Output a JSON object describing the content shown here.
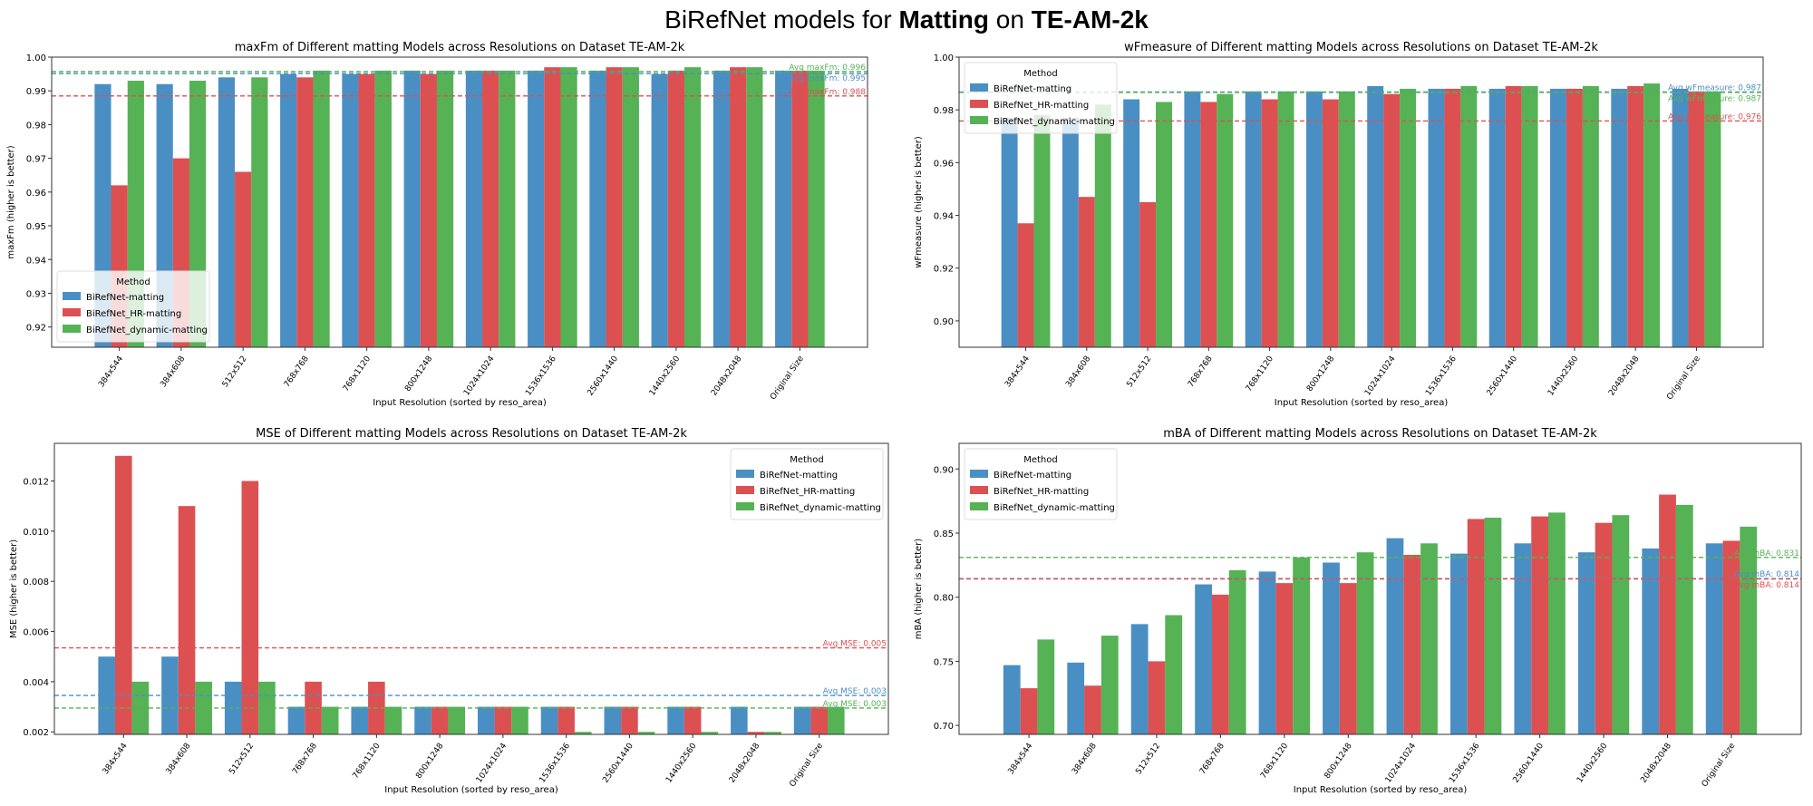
{
  "header": {
    "title_prefix": "BiRefNet models for ",
    "title_bold1": "Matting",
    "title_mid": " on ",
    "title_bold2": "TE-AM-2k"
  },
  "colors": {
    "BiRefNet-matting": "#4a8fc4",
    "BiRefNet_HR-matting": "#dd5052",
    "BiRefNet_dynamic-matting": "#55b255"
  },
  "chart_data": [
    {
      "type": "bar",
      "title": "maxFm of Different matting Models across Resolutions on Dataset TE-AM-2k",
      "xlabel": "Input Resolution (sorted by reso_area)",
      "ylabel": "maxFm (higher is better)",
      "ylim": [
        0.914,
        1.0
      ],
      "yticks": [
        "0.92",
        "0.93",
        "0.94",
        "0.95",
        "0.96",
        "0.97",
        "0.98",
        "0.99",
        "1.00"
      ],
      "legend_title": "Method",
      "legend_position": "lower-left",
      "categories": [
        "384x544",
        "384x608",
        "512x512",
        "768x768",
        "768x1120",
        "800x1248",
        "1024x1024",
        "1536x1536",
        "2560x1440",
        "1440x2560",
        "2048x2048",
        "Original Size"
      ],
      "series": [
        {
          "name": "BiRefNet-matting",
          "values": [
            0.992,
            0.992,
            0.994,
            0.995,
            0.995,
            0.996,
            0.996,
            0.996,
            0.996,
            0.995,
            0.996,
            0.996
          ]
        },
        {
          "name": "BiRefNet_HR-matting",
          "values": [
            0.962,
            0.97,
            0.966,
            0.994,
            0.995,
            0.995,
            0.996,
            0.997,
            0.997,
            0.996,
            0.997,
            0.996
          ]
        },
        {
          "name": "BiRefNet_dynamic-matting",
          "values": [
            0.993,
            0.993,
            0.994,
            0.996,
            0.996,
            0.996,
            0.996,
            0.997,
            0.997,
            0.997,
            0.997,
            0.996
          ]
        }
      ],
      "avg_lines": [
        {
          "series": "BiRefNet-matting",
          "value": 0.9951,
          "label": "Avg maxFm: 0.995"
        },
        {
          "series": "BiRefNet_HR-matting",
          "value": 0.9885,
          "label": "Avg maxFm: 0.988"
        },
        {
          "series": "BiRefNet_dynamic-matting",
          "value": 0.9957,
          "label": "Avg maxFm: 0.996"
        }
      ]
    },
    {
      "type": "bar",
      "title": "wFmeasure of Different matting Models across Resolutions on Dataset TE-AM-2k",
      "xlabel": "Input Resolution (sorted by reso_area)",
      "ylabel": "wFmeasure (higher is better)",
      "ylim": [
        0.89,
        1.0
      ],
      "yticks": [
        "0.90",
        "0.92",
        "0.94",
        "0.96",
        "0.98",
        "1.00"
      ],
      "legend_title": "Method",
      "legend_position": "upper-left",
      "categories": [
        "384x544",
        "384x608",
        "512x512",
        "768x768",
        "768x1120",
        "800x1248",
        "1024x1024",
        "1536x1536",
        "2560x1440",
        "1440x2560",
        "2048x2048",
        "Original Size"
      ],
      "series": [
        {
          "name": "BiRefNet-matting",
          "values": [
            0.977,
            0.977,
            0.984,
            0.987,
            0.987,
            0.987,
            0.989,
            0.988,
            0.988,
            0.988,
            0.988,
            0.988
          ]
        },
        {
          "name": "BiRefNet_HR-matting",
          "values": [
            0.937,
            0.947,
            0.945,
            0.983,
            0.984,
            0.984,
            0.986,
            0.988,
            0.989,
            0.988,
            0.989,
            0.987
          ]
        },
        {
          "name": "BiRefNet_dynamic-matting",
          "values": [
            0.978,
            0.982,
            0.983,
            0.986,
            0.987,
            0.987,
            0.988,
            0.989,
            0.989,
            0.989,
            0.99,
            0.987
          ]
        }
      ],
      "avg_lines": [
        {
          "series": "BiRefNet-matting",
          "value": 0.9868,
          "label": "Avg wFmeasure: 0.987"
        },
        {
          "series": "BiRefNet_HR-matting",
          "value": 0.9758,
          "label": "Avg wFmeasure: 0.976"
        },
        {
          "series": "BiRefNet_dynamic-matting",
          "value": 0.9866,
          "label": "Avg wFmeasure: 0.987"
        }
      ]
    },
    {
      "type": "bar",
      "title": "MSE of Different matting Models across Resolutions on Dataset TE-AM-2k",
      "xlabel": "Input Resolution (sorted by reso_area)",
      "ylabel": "MSE (higher is better)",
      "ylim": [
        0.0019,
        0.0135
      ],
      "yticks": [
        "0.002",
        "0.004",
        "0.006",
        "0.008",
        "0.010",
        "0.012"
      ],
      "legend_title": "Method",
      "legend_position": "upper-right",
      "categories": [
        "384x544",
        "384x608",
        "512x512",
        "768x768",
        "768x1120",
        "800x1248",
        "1024x1024",
        "1536x1536",
        "2560x1440",
        "1440x2560",
        "2048x2048",
        "Original Size"
      ],
      "series": [
        {
          "name": "BiRefNet-matting",
          "values": [
            0.005,
            0.005,
            0.004,
            0.003,
            0.003,
            0.003,
            0.003,
            0.003,
            0.003,
            0.003,
            0.003,
            0.003
          ]
        },
        {
          "name": "BiRefNet_HR-matting",
          "values": [
            0.013,
            0.011,
            0.012,
            0.004,
            0.004,
            0.003,
            0.003,
            0.003,
            0.003,
            0.003,
            0.002,
            0.003
          ]
        },
        {
          "name": "BiRefNet_dynamic-matting",
          "values": [
            0.004,
            0.004,
            0.004,
            0.003,
            0.003,
            0.003,
            0.003,
            0.002,
            0.002,
            0.002,
            0.002,
            0.003
          ]
        }
      ],
      "avg_lines": [
        {
          "series": "BiRefNet-matting",
          "value": 0.00345,
          "label": "Avg MSE: 0.003"
        },
        {
          "series": "BiRefNet_HR-matting",
          "value": 0.00535,
          "label": "Avg MSE: 0.005"
        },
        {
          "series": "BiRefNet_dynamic-matting",
          "value": 0.00295,
          "label": "Avg MSE: 0.003"
        }
      ]
    },
    {
      "type": "bar",
      "title": "mBA of Different matting Models across Resolutions on Dataset TE-AM-2k",
      "xlabel": "Input Resolution (sorted by reso_area)",
      "ylabel": "mBA (higher is better)",
      "ylim": [
        0.693,
        0.92
      ],
      "yticks": [
        "0.70",
        "0.75",
        "0.80",
        "0.85",
        "0.90"
      ],
      "legend_title": "Method",
      "legend_position": "upper-left",
      "categories": [
        "384x544",
        "384x608",
        "512x512",
        "768x768",
        "768x1120",
        "800x1248",
        "1024x1024",
        "1536x1536",
        "2560x1440",
        "1440x2560",
        "2048x2048",
        "Original Size"
      ],
      "series": [
        {
          "name": "BiRefNet-matting",
          "values": [
            0.747,
            0.749,
            0.779,
            0.81,
            0.82,
            0.827,
            0.846,
            0.834,
            0.842,
            0.835,
            0.838,
            0.842
          ]
        },
        {
          "name": "BiRefNet_HR-matting",
          "values": [
            0.729,
            0.731,
            0.75,
            0.802,
            0.811,
            0.811,
            0.833,
            0.861,
            0.863,
            0.858,
            0.88,
            0.844
          ]
        },
        {
          "name": "BiRefNet_dynamic-matting",
          "values": [
            0.767,
            0.77,
            0.786,
            0.821,
            0.831,
            0.835,
            0.842,
            0.862,
            0.866,
            0.864,
            0.872,
            0.855
          ]
        }
      ],
      "avg_lines": [
        {
          "series": "BiRefNet-matting",
          "value": 0.8145,
          "label": "Avg mBA: 0.814"
        },
        {
          "series": "BiRefNet_HR-matting",
          "value": 0.8142,
          "label": "Avg mBA: 0.814"
        },
        {
          "series": "BiRefNet_dynamic-matting",
          "value": 0.831,
          "label": "Avg mBA: 0.831"
        }
      ]
    }
  ]
}
